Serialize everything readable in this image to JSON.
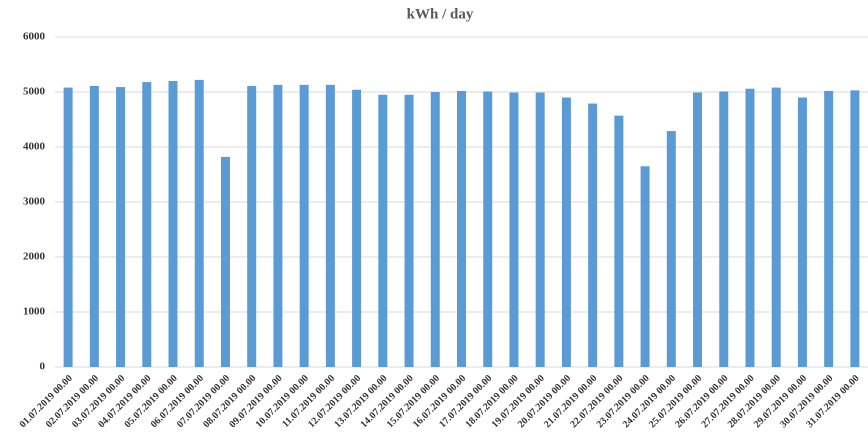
{
  "chart_data": {
    "type": "bar",
    "title": "kWh / day",
    "categories": [
      "01.07.2019 00.00",
      "02.07.2019 00.00",
      "03.07.2019 00.00",
      "04.07.2019 00.00",
      "05.07.2019 00.00",
      "06.07.2019 00.00",
      "07.07.2019 00.00",
      "08.07.2019 00.00",
      "09.07.2019 00.00",
      "10.07.2019 00.00",
      "11.07.2019 00.00",
      "12.07.2019 00.00",
      "13.07.2019 00.00",
      "14.07.2019 00.00",
      "15.07.2019 00.00",
      "16.07.2019 00.00",
      "17.07.2019 00.00",
      "18.07.2019 00.00",
      "19.07.2019 00.00",
      "20.07.2019 00.00",
      "21.07.2019 00.00",
      "22.07.2019 00.00",
      "23.07.2019 00.00",
      "24.07.2019 00.00",
      "25.07.2019 00.00",
      "26.07.2019 00.00",
      "27.07.2019 00.00",
      "28.07.2019 00.00",
      "29.07.2019 00.00",
      "30.07.2019 00.00",
      "31.07.2019 00.00"
    ],
    "values": [
      5080,
      5110,
      5090,
      5180,
      5200,
      5220,
      3820,
      5110,
      5130,
      5130,
      5130,
      5040,
      4950,
      4950,
      5000,
      5020,
      5010,
      4990,
      4990,
      4900,
      4790,
      4570,
      3650,
      4290,
      4990,
      5010,
      5060,
      5080,
      4900,
      5020,
      5030
    ],
    "color": "#5b9bd5",
    "ylim": [
      0,
      6000
    ],
    "yticks": [
      0,
      1000,
      2000,
      3000,
      4000,
      5000,
      6000
    ],
    "grid": true
  }
}
